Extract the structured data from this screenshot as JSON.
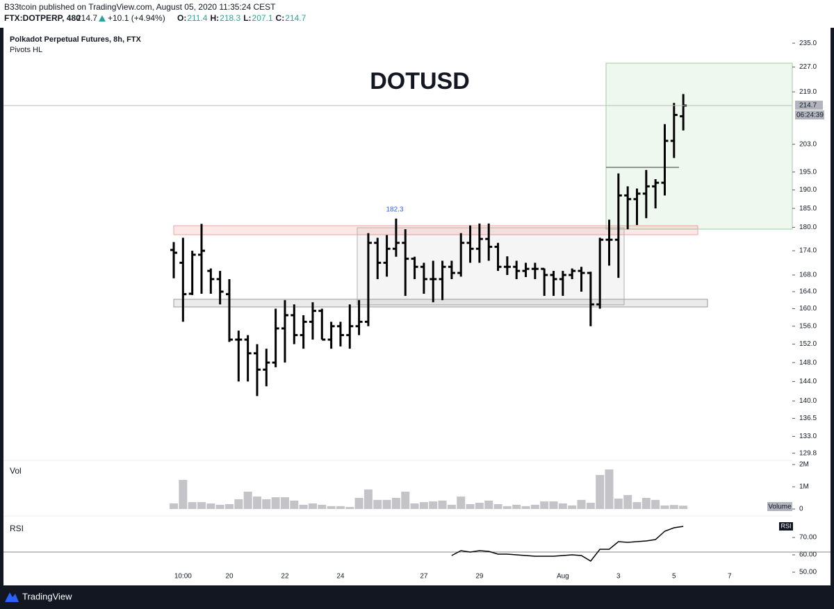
{
  "header": {
    "publisher": "B33tcoin published on TradingView.com, August 05, 2020 11:35:24 CEST",
    "symbol": "FTX:DOTPERP, 480",
    "last": "214.7",
    "change": "+10.1 (+4.94%)",
    "ohlc": [
      {
        "label": "O:",
        "value": "211.4"
      },
      {
        "label": "H:",
        "value": "218.3"
      },
      {
        "label": "L:",
        "value": "207.1"
      },
      {
        "label": "C:",
        "value": "214.7"
      }
    ]
  },
  "chart_data": [
    {
      "type": "ohlc",
      "title": "Polkadot Perpetual Futures, 8h, FTX",
      "subtitle": "Pivots HL",
      "annotation": "DOTUSD",
      "pivot_label": "182.3",
      "last_price_label": "214.7",
      "countdown": "06:24:39",
      "color": "#000000",
      "log_scale": true,
      "categories": [
        null,
        "10:00",
        null,
        null,
        null,
        null,
        "20",
        null,
        null,
        null,
        null,
        null,
        "22",
        null,
        null,
        null,
        null,
        null,
        "24",
        null,
        null,
        null,
        null,
        null,
        null,
        null,
        null,
        "27",
        null,
        null,
        null,
        null,
        null,
        "29",
        null,
        null,
        null,
        null,
        null,
        null,
        null,
        null,
        "Aug",
        null,
        null,
        null,
        null,
        null,
        "3",
        null,
        null,
        null,
        null,
        null,
        "5",
        null,
        null,
        null,
        null,
        null,
        "7"
      ],
      "open": [
        174.2,
        171,
        163.5,
        173,
        169,
        167,
        163.4,
        153,
        153,
        150,
        146.5,
        148,
        155.5,
        158.5,
        154,
        157,
        159.5,
        153,
        156,
        154,
        156,
        157,
        176,
        171,
        174.5,
        176,
        172,
        170,
        167,
        167,
        170,
        168.5,
        176,
        174.5,
        177,
        175,
        170,
        170,
        169,
        169.5,
        169.5,
        168,
        167,
        168,
        169,
        168.5,
        161,
        176.8,
        176.8,
        188.5,
        187.5,
        189,
        191,
        192,
        204,
        211.4,
        null,
        null,
        null,
        null,
        null
      ],
      "high": [
        176.2,
        177.3,
        174,
        180.9,
        169.6,
        169,
        167,
        155,
        154,
        152,
        151,
        160,
        162,
        161,
        158.5,
        161.5,
        160,
        157,
        157,
        161,
        162,
        178.5,
        177.3,
        178,
        182.3,
        179.5,
        172.5,
        171,
        171.5,
        171.5,
        171.5,
        178.5,
        180.5,
        181,
        181,
        176,
        172.6,
        171.5,
        171,
        171,
        169.6,
        169,
        169,
        169.6,
        170,
        168.8,
        177.3,
        182,
        194.6,
        191,
        190.4,
        195.6,
        193,
        209,
        215.5,
        218.3,
        null,
        null,
        null,
        null,
        null
      ],
      "low": [
        167.2,
        157,
        163.2,
        163.5,
        163.5,
        161,
        152.5,
        144,
        144,
        141,
        143,
        147,
        148,
        152,
        151,
        153,
        153,
        151,
        151.5,
        151,
        154,
        156,
        167,
        167.6,
        172.5,
        163,
        167,
        163.5,
        161.5,
        162,
        167,
        167.6,
        171,
        171,
        171.5,
        169,
        168,
        167,
        167.5,
        167,
        163,
        163,
        163,
        167,
        164,
        156,
        160,
        170.3,
        167.3,
        179.5,
        180.6,
        182.4,
        185,
        188.5,
        199,
        207.1,
        null,
        null,
        null,
        null,
        null
      ],
      "close": [
        173.5,
        163.4,
        173,
        174,
        167,
        164,
        153,
        153,
        150,
        146.5,
        148,
        155.5,
        158.5,
        154,
        157,
        159.5,
        153,
        156,
        154,
        156,
        157,
        176,
        171,
        174.5,
        176,
        172,
        170,
        167,
        167,
        170,
        168.5,
        176,
        174.5,
        177,
        175,
        170,
        170,
        169,
        169.5,
        169.5,
        168,
        167,
        168,
        169,
        168.5,
        161,
        176.8,
        176.8,
        188.5,
        187.5,
        189,
        191,
        192,
        204,
        211.8,
        214.7,
        null,
        null,
        null,
        null,
        null
      ],
      "ylim": [
        128.2,
        239.8
      ],
      "yticks": [
        {
          "value": 235,
          "label": "235.0"
        },
        {
          "value": 227,
          "label": "227.0"
        },
        {
          "value": 219,
          "label": "219.0"
        },
        {
          "value": 203,
          "label": "203.0"
        },
        {
          "value": 195,
          "label": "195.0"
        },
        {
          "value": 190,
          "label": "190.0"
        },
        {
          "value": 185,
          "label": "185.0"
        },
        {
          "value": 180,
          "label": "180.0"
        },
        {
          "value": 174,
          "label": "174.0"
        },
        {
          "value": 168,
          "label": "168.0"
        },
        {
          "value": 164,
          "label": "164.0"
        },
        {
          "value": 160,
          "label": "160.0"
        },
        {
          "value": 156,
          "label": "156.0"
        },
        {
          "value": 152,
          "label": "152.0"
        },
        {
          "value": 148,
          "label": "148.0"
        },
        {
          "value": 144,
          "label": "144.0"
        },
        {
          "value": 140,
          "label": "140.0"
        },
        136.5,
        {
          "value": 133,
          "label": "133.0"
        },
        129.8
      ]
    },
    {
      "type": "bar",
      "title": "Vol",
      "legend": "Volume",
      "color": "#c3c3c8",
      "values": [
        250000,
        1310000,
        310000,
        310000,
        250000,
        190000,
        220000,
        440000,
        780000,
        560000,
        440000,
        530000,
        530000,
        380000,
        190000,
        250000,
        190000,
        130000,
        130000,
        90000,
        500000,
        880000,
        410000,
        410000,
        500000,
        780000,
        250000,
        310000,
        340000,
        380000,
        190000,
        560000,
        220000,
        280000,
        380000,
        220000,
        130000,
        190000,
        130000,
        190000,
        340000,
        340000,
        250000,
        160000,
        410000,
        280000,
        1530000,
        1780000,
        470000,
        630000,
        310000,
        500000,
        410000,
        160000,
        180000,
        150000
      ],
      "ylim": [
        0,
        2000000
      ],
      "yticks": [
        0,
        {
          "value": 1000000,
          "label": "1M"
        },
        {
          "value": 2000000,
          "label": "2M"
        }
      ]
    },
    {
      "type": "line",
      "title": "RSI",
      "legend": "RSI",
      "color": "#000000",
      "values": [
        null,
        null,
        null,
        null,
        null,
        null,
        null,
        null,
        null,
        null,
        null,
        null,
        null,
        null,
        null,
        null,
        null,
        null,
        null,
        null,
        null,
        null,
        null,
        null,
        null,
        null,
        null,
        null,
        null,
        null,
        59.6,
        62.4,
        61.6,
        62.4,
        62,
        60.4,
        60.4,
        60,
        59.6,
        59.2,
        59.2,
        59.2,
        59.6,
        60,
        59.6,
        56.4,
        63.2,
        63.2,
        67.6,
        67.2,
        67.6,
        68,
        68.8,
        73.6,
        75.6,
        76.4
      ],
      "ylim": [
        43.6,
        81.6
      ],
      "yticks": [
        {
          "value": 70,
          "label": "70.00"
        },
        {
          "value": 60,
          "label": "60.00"
        },
        {
          "value": 50,
          "label": "50.00"
        }
      ]
    }
  ],
  "footer": {
    "brand": "TradingView"
  }
}
